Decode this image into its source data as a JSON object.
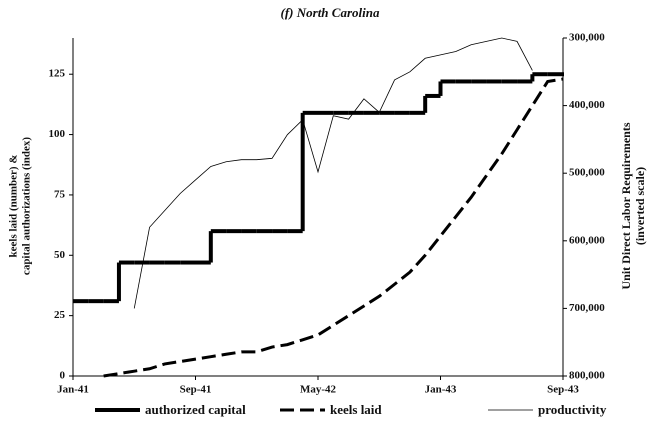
{
  "chart_data": {
    "type": "line",
    "title": "(f) North Carolina",
    "y_label": [
      "keels laid (number) &",
      "capital authorizations (index)"
    ],
    "y2_label": [
      "Unit Direct Labor Requirements",
      "(inverted scale)"
    ],
    "x": [
      "Jan-41",
      "Feb-41",
      "Mar-41",
      "Apr-41",
      "May-41",
      "Jun-41",
      "Jul-41",
      "Aug-41",
      "Sep-41",
      "Oct-41",
      "Nov-41",
      "Dec-41",
      "Jan-42",
      "Feb-42",
      "Mar-42",
      "Apr-42",
      "May-42",
      "Jun-42",
      "Jul-42",
      "Aug-42",
      "Sep-42",
      "Oct-42",
      "Nov-42",
      "Dec-42",
      "Jan-43",
      "Feb-43",
      "Mar-43",
      "Apr-43",
      "May-43",
      "Jun-43",
      "Jul-43",
      "Aug-43",
      "Sep-43"
    ],
    "xticks": [
      "Jan-41",
      "Sep-41",
      "May-42",
      "Jan-43",
      "Sep-43"
    ],
    "ylim": [
      0,
      140
    ],
    "yticks": [
      0,
      25,
      50,
      75,
      100,
      125
    ],
    "y2lim": [
      800000,
      300000
    ],
    "y2_inverted": true,
    "y2ticks": [
      {
        "value": 300000,
        "label": "300,000"
      },
      {
        "value": 400000,
        "label": "400,000"
      },
      {
        "value": 500000,
        "label": "500,000"
      },
      {
        "value": 600000,
        "label": "600,000"
      },
      {
        "value": 700000,
        "label": "700,000"
      },
      {
        "value": 800000,
        "label": "800,000"
      }
    ],
    "series": [
      {
        "name": "authorized capital",
        "color": "#000000",
        "style": "thick",
        "step": true,
        "values": [
          31,
          31,
          31,
          47,
          47,
          47,
          47,
          47,
          47,
          60,
          60,
          60,
          60,
          60,
          60,
          109,
          109,
          109,
          109,
          109,
          109,
          109,
          109,
          116,
          122,
          122,
          122,
          122,
          122,
          122,
          125,
          125,
          125
        ]
      },
      {
        "name": "keels laid",
        "color": "#000000",
        "style": "dashed",
        "step": false,
        "values": [
          null,
          null,
          0,
          1,
          2,
          3,
          5,
          6,
          7,
          8,
          9,
          10,
          10,
          12,
          13,
          15,
          17,
          21,
          25,
          29,
          33,
          38,
          43,
          50,
          58,
          66,
          74,
          83,
          92,
          102,
          112,
          122,
          123
        ]
      },
      {
        "name": "productivity",
        "color": "#000000",
        "style": "thin",
        "step": false,
        "axis": "y2",
        "values": [
          null,
          null,
          null,
          null,
          700000,
          580000,
          555000,
          530000,
          510000,
          490000,
          483000,
          480000,
          480000,
          478000,
          443000,
          421000,
          498000,
          415000,
          420000,
          390000,
          410000,
          362000,
          350000,
          330000,
          325000,
          320000,
          310000,
          305000,
          300000,
          305000,
          348000,
          null,
          null
        ]
      }
    ]
  }
}
